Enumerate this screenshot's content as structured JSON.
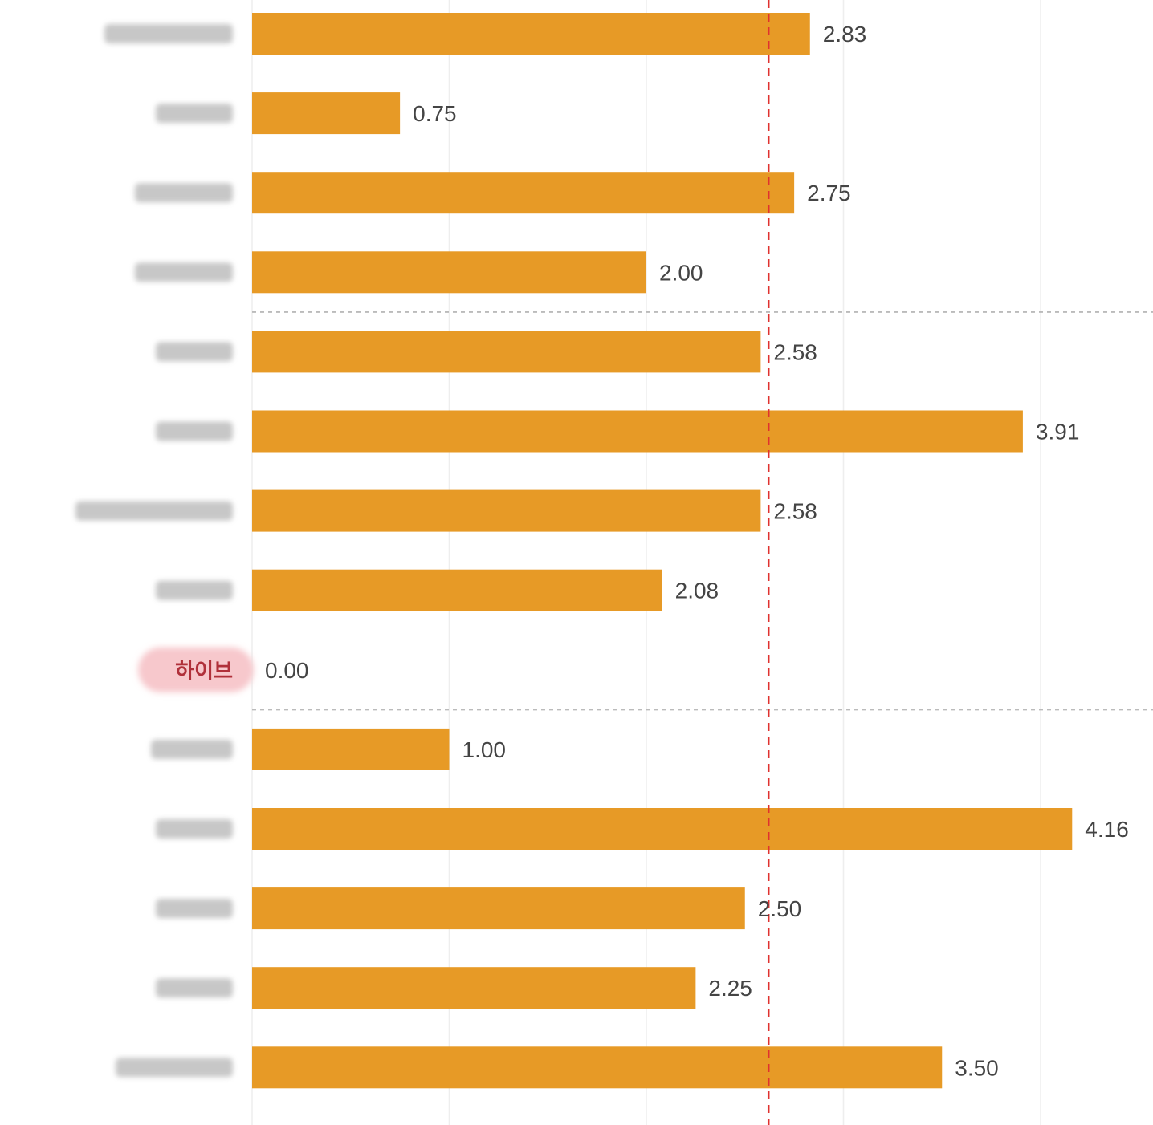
{
  "colors": {
    "bar": "#e79a26",
    "reference_line": "#e0322f",
    "highlight_pill": "#f7c8cc",
    "gridline": "#eeeeee",
    "group_separator": "#bbbbbb"
  },
  "chart_data": {
    "type": "bar",
    "orientation": "horizontal",
    "categories": [
      "",
      "",
      "",
      "",
      "",
      "",
      "",
      "",
      "하이브",
      "",
      "",
      "",
      "",
      ""
    ],
    "values": [
      2.83,
      0.75,
      2.75,
      2.0,
      2.58,
      3.91,
      2.58,
      2.08,
      0.0,
      1.0,
      4.16,
      2.5,
      2.25,
      3.5
    ],
    "value_labels": [
      "2.83",
      "0.75",
      "2.75",
      "2.00",
      "2.58",
      "3.91",
      "2.58",
      "2.08",
      "0.00",
      "1.00",
      "4.16",
      "2.50",
      "2.25",
      "3.50"
    ],
    "highlighted_category": "하이브",
    "category_labels_blurred": true,
    "reference_line_value": 2.62,
    "reference_line_style": "dashed",
    "group_breaks_after_index": [
      3,
      8
    ],
    "xlim": [
      0,
      4.3
    ],
    "x_gridlines": [
      0,
      1,
      2,
      3,
      4
    ],
    "grid": true,
    "title": "",
    "xlabel": "",
    "ylabel": ""
  }
}
